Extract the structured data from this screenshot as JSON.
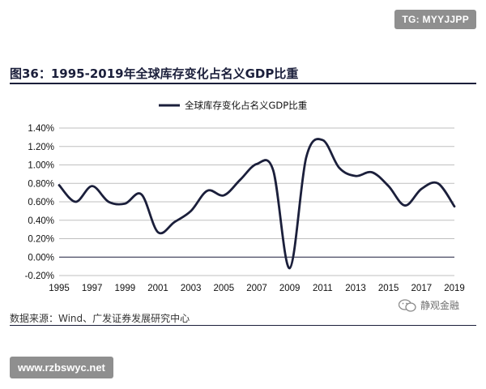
{
  "watermark_tg": "TG: MYYJJPP",
  "figure_title": "图36：1995-2019年全球库存变化占名义GDP比重",
  "source_note": "数据来源：Wind、广发证券发展研究中心",
  "wechat_mark": "静观金融",
  "site_badge": "www.rzbswyc.net",
  "colors": {
    "series": "#1b1f3b",
    "axis": "#1b1f3b",
    "grid": "#bfbfbf"
  },
  "chart_data": {
    "type": "line",
    "title": "",
    "legend": "全球库存变化占名义GDP比重",
    "legend_position": "top-center",
    "xlabel": "",
    "ylabel": "",
    "xlim": [
      1995,
      2019
    ],
    "ylim": [
      -0.2,
      1.4
    ],
    "y_ticks": [
      -0.2,
      0.0,
      0.2,
      0.4,
      0.6,
      0.8,
      1.0,
      1.2,
      1.4
    ],
    "y_tick_labels": [
      "-0.20%",
      "0.00%",
      "0.20%",
      "0.40%",
      "0.60%",
      "0.80%",
      "1.00%",
      "1.20%",
      "1.40%"
    ],
    "x_ticks": [
      1995,
      1997,
      1999,
      2001,
      2003,
      2005,
      2007,
      2009,
      2011,
      2013,
      2015,
      2017,
      2019
    ],
    "x_tick_labels": [
      "1995",
      "1997",
      "1999",
      "2001",
      "2003",
      "2005",
      "2007",
      "2009",
      "2011",
      "2013",
      "2015",
      "2017",
      "2019"
    ],
    "grid": true,
    "series": [
      {
        "name": "全球库存变化占名义GDP比重",
        "x": [
          1995,
          1996,
          1997,
          1998,
          1999,
          2000,
          2001,
          2002,
          2003,
          2004,
          2005,
          2006,
          2007,
          2008,
          2009,
          2010,
          2011,
          2012,
          2013,
          2014,
          2015,
          2016,
          2017,
          2018,
          2019
        ],
        "values": [
          0.78,
          0.6,
          0.77,
          0.6,
          0.58,
          0.68,
          0.27,
          0.38,
          0.5,
          0.72,
          0.67,
          0.84,
          1.01,
          0.94,
          -0.12,
          1.08,
          1.27,
          0.97,
          0.88,
          0.92,
          0.77,
          0.56,
          0.74,
          0.8,
          0.55
        ]
      }
    ]
  }
}
